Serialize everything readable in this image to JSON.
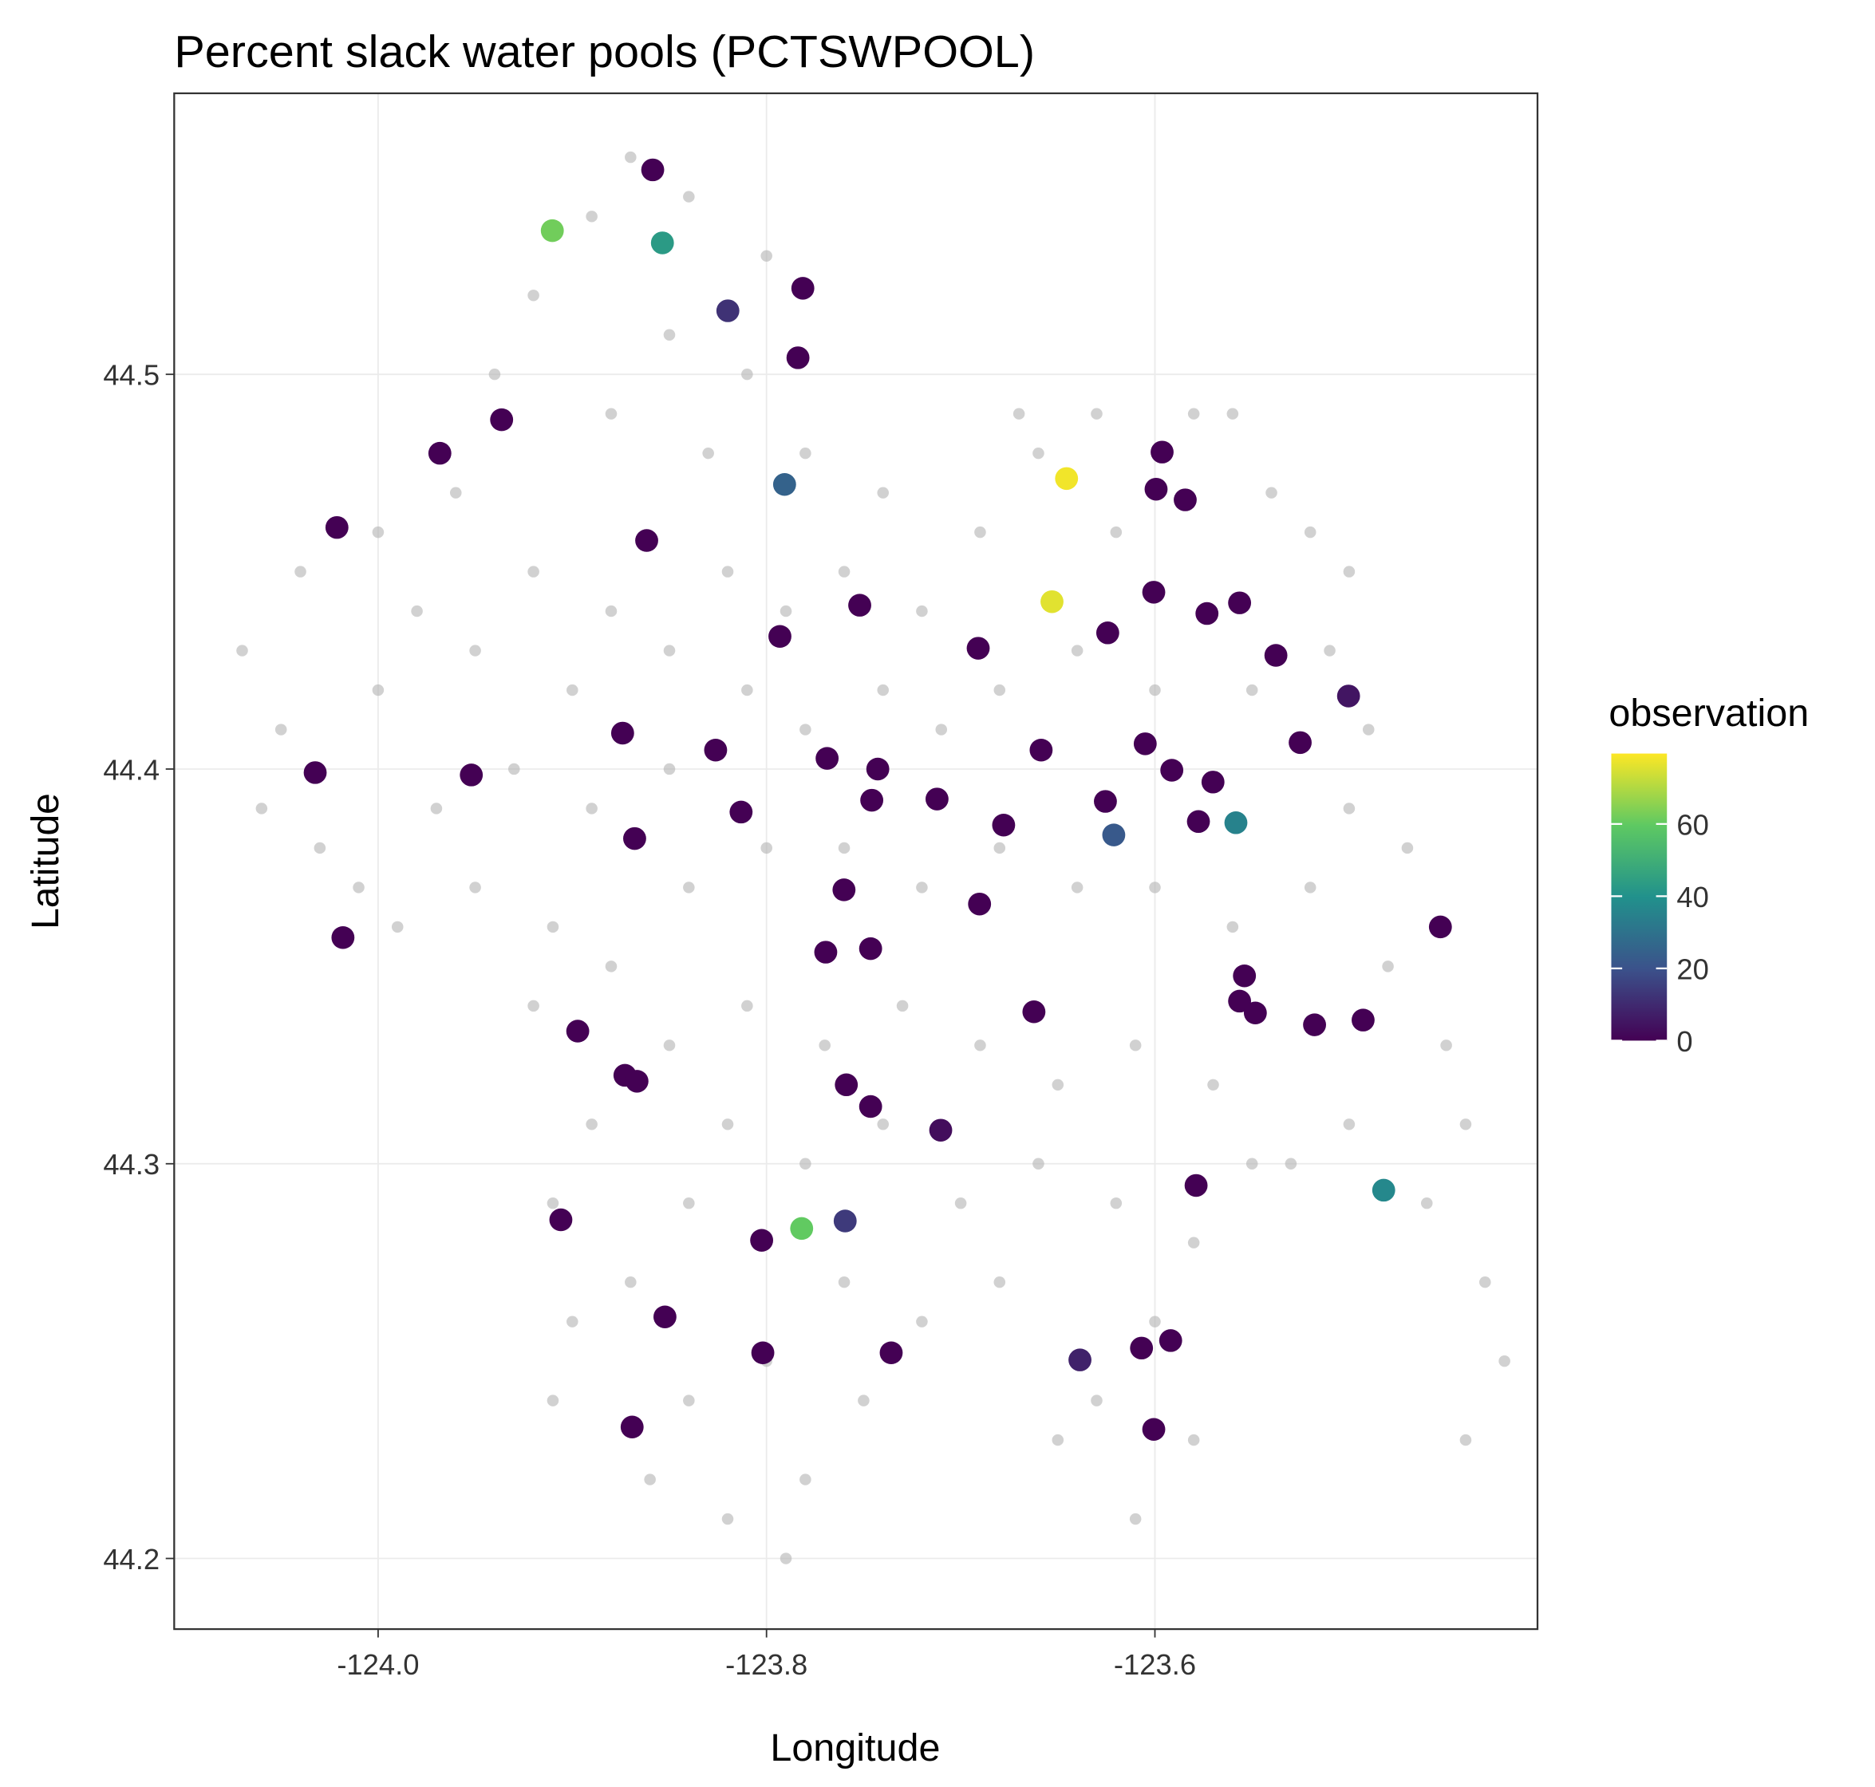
{
  "chart_data": {
    "type": "scatter",
    "title": "Percent slack water pools (PCTSWPOOL)",
    "x_label": "Longitude",
    "y_label": "Latitude",
    "xlim": [
      -124.105,
      -123.403
    ],
    "ylim": [
      44.1821,
      44.5712
    ],
    "xticks": [
      {
        "value": -124.0,
        "label": "-124.0"
      },
      {
        "value": -123.8,
        "label": "-123.8"
      },
      {
        "value": -123.6,
        "label": "-123.6"
      }
    ],
    "yticks": [
      44.2,
      44.3,
      44.4,
      44.5
    ],
    "grid": true,
    "background": {
      "color": "#b3b3b3",
      "x": [
        -123.87,
        -123.89,
        -123.84,
        -123.8,
        -123.92,
        -123.85,
        -123.81,
        -123.94,
        -123.88,
        -123.83,
        -123.78,
        -123.74,
        -123.96,
        -124.0,
        -124.04,
        -124.07,
        -124.05,
        -124.06,
        -124.03,
        -124.0,
        -123.98,
        -123.95,
        -123.92,
        -123.9,
        -123.88,
        -123.85,
        -123.82,
        -123.79,
        -123.76,
        -123.72,
        -123.69,
        -123.66,
        -123.67,
        -123.63,
        -123.62,
        -123.58,
        -123.56,
        -123.54,
        -123.52,
        -123.5,
        -123.51,
        -123.49,
        -123.5,
        -123.47,
        -123.55,
        -123.6,
        -123.64,
        -123.68,
        -123.71,
        -123.74,
        -123.78,
        -123.81,
        -123.85,
        -123.89,
        -123.93,
        -123.97,
        -124.01,
        -123.99,
        -123.95,
        -123.91,
        -123.92,
        -123.88,
        -123.84,
        -123.8,
        -123.76,
        -123.72,
        -123.68,
        -123.64,
        -123.6,
        -123.56,
        -123.52,
        -123.48,
        -123.45,
        -123.44,
        -123.46,
        -123.43,
        -123.42,
        -123.44,
        -123.5,
        -123.53,
        -123.57,
        -123.61,
        -123.65,
        -123.69,
        -123.73,
        -123.77,
        -123.81,
        -123.85,
        -123.89,
        -123.91,
        -123.9,
        -123.91,
        -123.87,
        -123.84,
        -123.82,
        -123.78,
        -123.74,
        -123.7,
        -123.66,
        -123.62,
        -123.58,
        -123.55,
        -123.6,
        -123.63,
        -123.65,
        -123.61,
        -123.58,
        -123.68,
        -123.72,
        -123.76,
        -123.8,
        -123.84,
        -123.86,
        -123.82,
        -123.79,
        -123.78,
        -123.75
      ],
      "y": [
        44.555,
        44.54,
        44.545,
        44.53,
        44.52,
        44.51,
        44.5,
        44.5,
        44.49,
        44.48,
        44.48,
        44.47,
        44.47,
        44.46,
        44.45,
        44.43,
        44.41,
        44.39,
        44.38,
        44.42,
        44.44,
        44.43,
        44.45,
        44.42,
        44.44,
        44.43,
        44.45,
        44.44,
        44.45,
        44.44,
        44.46,
        44.48,
        44.49,
        44.49,
        44.46,
        44.49,
        44.49,
        44.47,
        44.46,
        44.45,
        44.43,
        44.41,
        44.39,
        44.38,
        44.42,
        44.42,
        44.43,
        44.42,
        44.41,
        44.42,
        44.41,
        44.42,
        44.4,
        44.39,
        44.4,
        44.39,
        44.37,
        44.36,
        44.37,
        44.36,
        44.34,
        44.35,
        44.37,
        44.38,
        44.38,
        44.37,
        44.38,
        44.37,
        44.37,
        44.36,
        44.37,
        44.35,
        44.33,
        44.31,
        44.29,
        44.27,
        44.25,
        44.23,
        44.31,
        44.3,
        44.32,
        44.33,
        44.32,
        44.33,
        44.34,
        44.33,
        44.34,
        44.33,
        44.31,
        44.29,
        44.26,
        44.24,
        44.27,
        44.29,
        44.31,
        44.3,
        44.31,
        44.29,
        44.3,
        44.29,
        44.28,
        44.3,
        44.26,
        44.24,
        44.23,
        44.21,
        44.23,
        44.27,
        44.26,
        44.27,
        44.25,
        44.24,
        44.22,
        44.21,
        44.2,
        44.22,
        44.24
      ]
    },
    "series": [
      {
        "x": [
          -123.8586,
          -123.9103,
          -123.8536,
          -123.7813,
          -123.8199,
          -123.7838,
          -123.9364,
          -123.9682,
          -123.7907,
          -124.0212,
          -123.8617,
          -123.752,
          -123.7931,
          -123.691,
          -123.6455,
          -123.653,
          -123.5963,
          -123.5994,
          -123.5844,
          -123.6006,
          -123.6243,
          -123.5732,
          -123.5564,
          -123.5377,
          -123.5003,
          -123.5252,
          -123.8741,
          -123.8262,
          -123.7688,
          -123.7427,
          -124.0324,
          -123.952,
          -123.7458,
          -123.7122,
          -123.8131,
          -123.6586,
          -123.605,
          -123.5913,
          -123.6255,
          -123.5701,
          -123.5776,
          -123.5583,
          -123.6212,
          -123.6779,
          -123.8679,
          -123.7601,
          -123.6903,
          -124.0181,
          -123.7695,
          -123.7464,
          -123.453,
          -123.5539,
          -123.5564,
          -123.5483,
          -123.6623,
          -123.5178,
          -123.4928,
          -123.8972,
          -123.8729,
          -123.8667,
          -123.7589,
          -123.7464,
          -123.7103,
          -123.5788,
          -123.4822,
          -123.9059,
          -123.7819,
          -123.7595,
          -123.8025,
          -123.8523,
          -123.8019,
          -123.7358,
          -123.6386,
          -123.6069,
          -123.5919,
          -123.8692,
          -123.6006
        ],
        "y": [
          44.5518,
          44.5364,
          44.5333,
          44.5218,
          44.5161,
          44.5042,
          44.4885,
          44.48,
          44.4721,
          44.4612,
          44.4579,
          44.4415,
          44.4336,
          44.4306,
          44.4736,
          44.4424,
          44.4803,
          44.4709,
          44.4682,
          44.4448,
          44.4345,
          44.4394,
          44.4421,
          44.4288,
          44.4185,
          44.4067,
          44.4091,
          44.4048,
          44.4027,
          44.4,
          44.3991,
          44.3985,
          44.3921,
          44.3924,
          44.3891,
          44.4048,
          44.4064,
          44.3997,
          44.3918,
          44.3967,
          44.3867,
          44.3864,
          44.3833,
          44.3858,
          44.3824,
          44.3694,
          44.3658,
          44.3573,
          44.3536,
          44.3545,
          44.36,
          44.3476,
          44.3412,
          44.3382,
          44.3385,
          44.3352,
          44.3364,
          44.3336,
          44.3224,
          44.3209,
          44.32,
          44.3145,
          44.3085,
          44.2945,
          44.2933,
          44.2858,
          44.2836,
          44.2855,
          44.2806,
          44.2612,
          44.2521,
          44.2521,
          44.2503,
          44.2533,
          44.2552,
          44.2333,
          44.2327
        ],
        "values": [
          0,
          62,
          43,
          0,
          12,
          0,
          0,
          0,
          25,
          0,
          0,
          0,
          0,
          0,
          78,
          76,
          0,
          0,
          0,
          0,
          0,
          0,
          0,
          0,
          5,
          0,
          0,
          0,
          0,
          0,
          0,
          0,
          0,
          0,
          0,
          0,
          0,
          0,
          0,
          0,
          0,
          35,
          22,
          0,
          0,
          0,
          0,
          0,
          0,
          0,
          0,
          0,
          0,
          0,
          0,
          0,
          0,
          0,
          0,
          0,
          0,
          0,
          3,
          0,
          37,
          0,
          60,
          14,
          0,
          0,
          0,
          0,
          8,
          0,
          0,
          0,
          0
        ]
      }
    ],
    "legend": {
      "title": "observation",
      "position": "right",
      "clim": [
        0,
        79.5
      ],
      "ticks": [
        0,
        20,
        40,
        60
      ],
      "colormap": [
        "#440154",
        "#3b528b",
        "#21918c",
        "#5ec962",
        "#fde725"
      ]
    }
  }
}
